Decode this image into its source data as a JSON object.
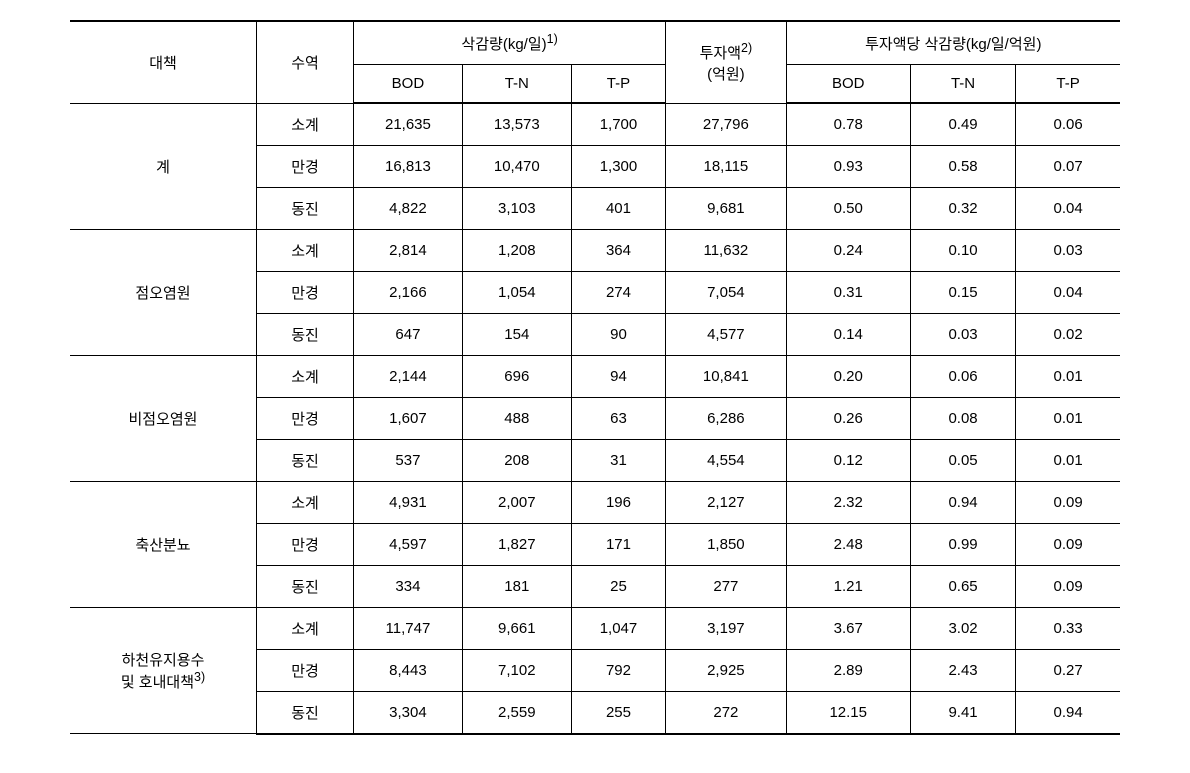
{
  "headers": {
    "measure": "대책",
    "region": "수역",
    "reduction_group": "삭감량(kg/일)",
    "reduction_sup": "1)",
    "investment": "투자액",
    "investment_sup": "2)",
    "investment_unit": "(억원)",
    "per_investment_group": "투자액당 삭감량(kg/일/억원)",
    "sub_bod": "BOD",
    "sub_tn": "T-N",
    "sub_tp": "T-P"
  },
  "groups": [
    {
      "label": "계",
      "sup": "",
      "rows": [
        {
          "region": "소계",
          "bod": "21,635",
          "tn": "13,573",
          "tp": "1,700",
          "inv": "27,796",
          "pbod": "0.78",
          "ptn": "0.49",
          "ptp": "0.06"
        },
        {
          "region": "만경",
          "bod": "16,813",
          "tn": "10,470",
          "tp": "1,300",
          "inv": "18,115",
          "pbod": "0.93",
          "ptn": "0.58",
          "ptp": "0.07"
        },
        {
          "region": "동진",
          "bod": "4,822",
          "tn": "3,103",
          "tp": "401",
          "inv": "9,681",
          "pbod": "0.50",
          "ptn": "0.32",
          "ptp": "0.04"
        }
      ]
    },
    {
      "label": "점오염원",
      "sup": "",
      "rows": [
        {
          "region": "소계",
          "bod": "2,814",
          "tn": "1,208",
          "tp": "364",
          "inv": "11,632",
          "pbod": "0.24",
          "ptn": "0.10",
          "ptp": "0.03"
        },
        {
          "region": "만경",
          "bod": "2,166",
          "tn": "1,054",
          "tp": "274",
          "inv": "7,054",
          "pbod": "0.31",
          "ptn": "0.15",
          "ptp": "0.04"
        },
        {
          "region": "동진",
          "bod": "647",
          "tn": "154",
          "tp": "90",
          "inv": "4,577",
          "pbod": "0.14",
          "ptn": "0.03",
          "ptp": "0.02"
        }
      ]
    },
    {
      "label": "비점오염원",
      "sup": "",
      "rows": [
        {
          "region": "소계",
          "bod": "2,144",
          "tn": "696",
          "tp": "94",
          "inv": "10,841",
          "pbod": "0.20",
          "ptn": "0.06",
          "ptp": "0.01"
        },
        {
          "region": "만경",
          "bod": "1,607",
          "tn": "488",
          "tp": "63",
          "inv": "6,286",
          "pbod": "0.26",
          "ptn": "0.08",
          "ptp": "0.01"
        },
        {
          "region": "동진",
          "bod": "537",
          "tn": "208",
          "tp": "31",
          "inv": "4,554",
          "pbod": "0.12",
          "ptn": "0.05",
          "ptp": "0.01"
        }
      ]
    },
    {
      "label": "축산분뇨",
      "sup": "",
      "rows": [
        {
          "region": "소계",
          "bod": "4,931",
          "tn": "2,007",
          "tp": "196",
          "inv": "2,127",
          "pbod": "2.32",
          "ptn": "0.94",
          "ptp": "0.09"
        },
        {
          "region": "만경",
          "bod": "4,597",
          "tn": "1,827",
          "tp": "171",
          "inv": "1,850",
          "pbod": "2.48",
          "ptn": "0.99",
          "ptp": "0.09"
        },
        {
          "region": "동진",
          "bod": "334",
          "tn": "181",
          "tp": "25",
          "inv": "277",
          "pbod": "1.21",
          "ptn": "0.65",
          "ptp": "0.09"
        }
      ]
    },
    {
      "label": "하천유지용수\n및 호내대책",
      "sup": "3)",
      "rows": [
        {
          "region": "소계",
          "bod": "11,747",
          "tn": "9,661",
          "tp": "1,047",
          "inv": "3,197",
          "pbod": "3.67",
          "ptn": "3.02",
          "ptp": "0.33"
        },
        {
          "region": "만경",
          "bod": "8,443",
          "tn": "7,102",
          "tp": "792",
          "inv": "2,925",
          "pbod": "2.89",
          "ptn": "2.43",
          "ptp": "0.27"
        },
        {
          "region": "동진",
          "bod": "3,304",
          "tn": "2,559",
          "tp": "255",
          "inv": "272",
          "pbod": "12.15",
          "ptn": "9.41",
          "ptp": "0.94"
        }
      ]
    }
  ]
}
